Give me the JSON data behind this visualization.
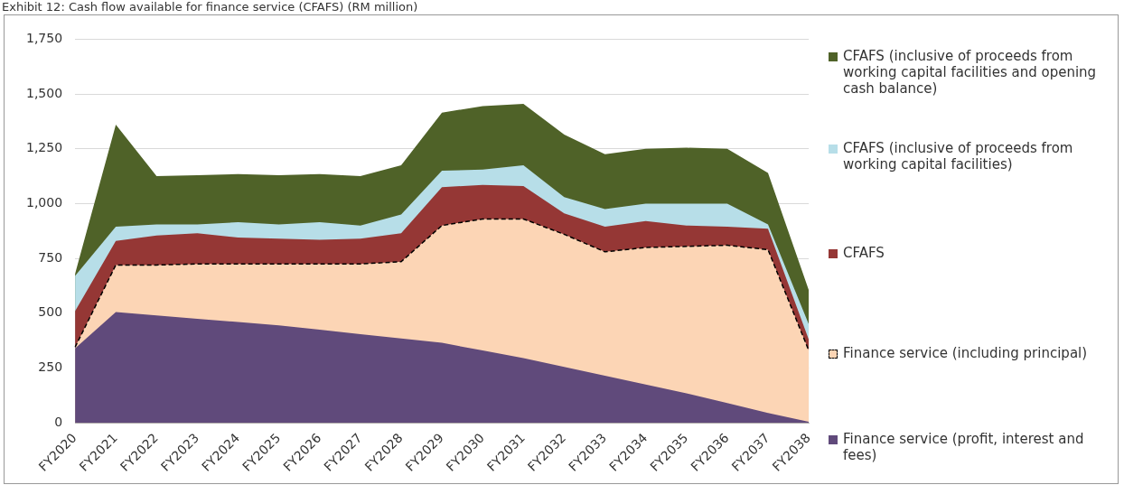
{
  "chart_data": {
    "type": "area",
    "title": "Exhibit 12: Cash flow available for finance service (CFAFS) (RM million)",
    "categories": [
      "FY2020",
      "FY2021",
      "FY2022",
      "FY2023",
      "FY2024",
      "FY2025",
      "FY2026",
      "FY2027",
      "FY2028",
      "FY2029",
      "FY2030",
      "FY2031",
      "FY2032",
      "FY2033",
      "FY2034",
      "FY2035",
      "FY2036",
      "FY2037",
      "FY2038"
    ],
    "series": [
      {
        "name": "CFAFS (inclusive of proceeds from working capital facilities and opening cash balance)",
        "color": "#4f6228",
        "values": [
          680,
          1360,
          1125,
          1130,
          1135,
          1130,
          1135,
          1125,
          1175,
          1415,
          1445,
          1455,
          1315,
          1225,
          1250,
          1255,
          1250,
          1140,
          605
        ]
      },
      {
        "name": "CFAFS (inclusive of proceeds from working capital facilities)",
        "color": "#b7dee8",
        "values": [
          670,
          895,
          905,
          905,
          915,
          905,
          915,
          900,
          950,
          1150,
          1155,
          1175,
          1030,
          975,
          1000,
          1000,
          1000,
          905,
          450
        ]
      },
      {
        "name": "CFAFS",
        "color": "#953735",
        "values": [
          510,
          830,
          855,
          865,
          845,
          840,
          835,
          840,
          865,
          1075,
          1085,
          1080,
          955,
          895,
          920,
          900,
          895,
          885,
          380
        ]
      },
      {
        "name": "Finance service (including principal)",
        "color": "#fcd5b5",
        "line_style": "dashed",
        "values": [
          345,
          720,
          720,
          725,
          725,
          725,
          725,
          725,
          735,
          900,
          930,
          930,
          860,
          780,
          800,
          805,
          810,
          790,
          330
        ]
      },
      {
        "name": "Finance service (profit, interest and fees)",
        "color": "#604a7b",
        "values": [
          340,
          505,
          490,
          475,
          460,
          445,
          425,
          405,
          385,
          365,
          330,
          295,
          255,
          215,
          175,
          135,
          90,
          45,
          5
        ]
      }
    ],
    "ylim": [
      0,
      1750
    ],
    "yticks": [
      0,
      250,
      500,
      750,
      {
        "value": 1000,
        "label": "1,000"
      },
      {
        "value": 1250,
        "label": "1,250"
      },
      {
        "value": 1500,
        "label": "1,500"
      },
      {
        "value": 1750,
        "label": "1,750"
      }
    ],
    "grid": "y",
    "legend": "right",
    "marker": "none"
  }
}
